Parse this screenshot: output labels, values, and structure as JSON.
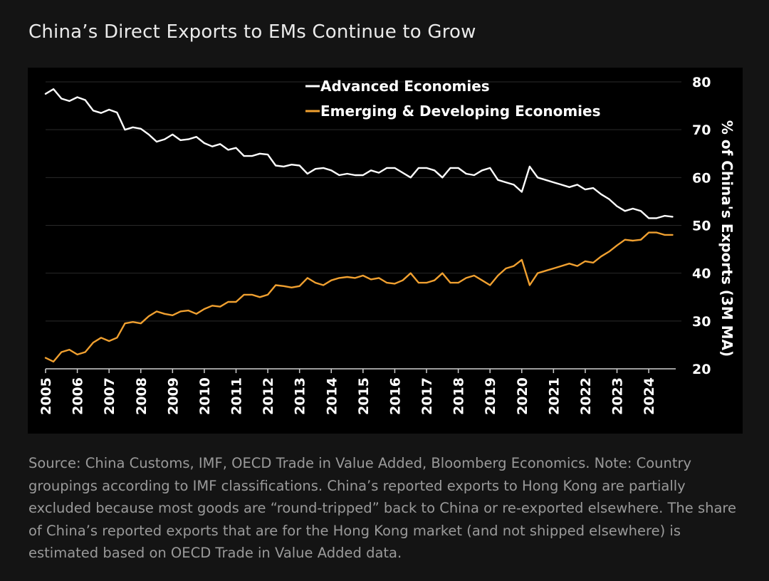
{
  "header": {
    "title": "China’s Direct Exports to EMs Continue to Grow"
  },
  "footer": {
    "source": "Source: China Customs, IMF, OECD Trade in Value Added, Bloomberg Economics. Note: Country groupings according to IMF classifications. China’s reported exports to Hong Kong are partially excluded because most goods are “round-tripped” back to China or re-exported elsewhere. The share of China’s reported exports that are for the Hong Kong market (and not shipped elsewhere) is estimated based on OECD Trade in Value Added data."
  },
  "colors": {
    "background": "#141414",
    "plot_background": "#000000",
    "advanced": "#ffffff",
    "emerging": "#f0a030"
  },
  "chart_data": {
    "type": "line",
    "title": "",
    "xlabel": "",
    "ylabel": "% of China's Exports (3M MA)",
    "xlim": [
      2005,
      2024.85
    ],
    "ylim": [
      20,
      80
    ],
    "x_ticks": [
      "2005",
      "2006",
      "2007",
      "2008",
      "2009",
      "2010",
      "2011",
      "2012",
      "2013",
      "2014",
      "2015",
      "2016",
      "2017",
      "2018",
      "2019",
      "2020",
      "2021",
      "2022",
      "2023",
      "2024"
    ],
    "y_ticks": [
      "20",
      "30",
      "40",
      "50",
      "60",
      "70",
      "80"
    ],
    "grid": "horizontal",
    "y_axis_side": "right",
    "legend_position": "top-center",
    "series": [
      {
        "name": "Advanced Economies",
        "color": "#ffffff",
        "x": [
          2005.0,
          2005.25,
          2005.5,
          2005.75,
          2006.0,
          2006.25,
          2006.5,
          2006.75,
          2007.0,
          2007.25,
          2007.5,
          2007.75,
          2008.0,
          2008.25,
          2008.5,
          2008.75,
          2009.0,
          2009.25,
          2009.5,
          2009.75,
          2010.0,
          2010.25,
          2010.5,
          2010.75,
          2011.0,
          2011.25,
          2011.5,
          2011.75,
          2012.0,
          2012.25,
          2012.5,
          2012.75,
          2013.0,
          2013.25,
          2013.5,
          2013.75,
          2014.0,
          2014.25,
          2014.5,
          2014.75,
          2015.0,
          2015.25,
          2015.5,
          2015.75,
          2016.0,
          2016.25,
          2016.5,
          2016.75,
          2017.0,
          2017.25,
          2017.5,
          2017.75,
          2018.0,
          2018.25,
          2018.5,
          2018.75,
          2019.0,
          2019.25,
          2019.5,
          2019.75,
          2020.0,
          2020.25,
          2020.5,
          2020.75,
          2021.0,
          2021.25,
          2021.5,
          2021.75,
          2022.0,
          2022.25,
          2022.5,
          2022.75,
          2023.0,
          2023.25,
          2023.5,
          2023.75,
          2024.0,
          2024.25,
          2024.5,
          2024.75
        ],
        "values": [
          77.5,
          78.5,
          76.5,
          76.0,
          76.8,
          76.2,
          74.0,
          73.5,
          74.2,
          73.6,
          70.0,
          70.5,
          70.2,
          69.0,
          67.5,
          68.0,
          69.0,
          67.8,
          68.0,
          68.5,
          67.2,
          66.5,
          67.0,
          65.8,
          66.2,
          64.5,
          64.5,
          65.0,
          64.8,
          62.5,
          62.3,
          62.7,
          62.5,
          60.8,
          61.8,
          62.0,
          61.5,
          60.5,
          60.8,
          60.5,
          60.5,
          61.5,
          61.0,
          62.0,
          62.0,
          61.0,
          60.0,
          62.0,
          62.0,
          61.5,
          60.0,
          62.0,
          62.0,
          60.8,
          60.5,
          61.5,
          62.0,
          59.5,
          59.0,
          58.5,
          57.0,
          62.3,
          60.0,
          59.5,
          59.0,
          58.5,
          58.0,
          58.5,
          57.5,
          57.8,
          56.5,
          55.5,
          54.0,
          53.0,
          53.5,
          53.0,
          51.5,
          51.5,
          52.0,
          51.8
        ]
      },
      {
        "name": "Emerging & Developing Economies",
        "color": "#f0a030",
        "x": [
          2005.0,
          2005.25,
          2005.5,
          2005.75,
          2006.0,
          2006.25,
          2006.5,
          2006.75,
          2007.0,
          2007.25,
          2007.5,
          2007.75,
          2008.0,
          2008.25,
          2008.5,
          2008.75,
          2009.0,
          2009.25,
          2009.5,
          2009.75,
          2010.0,
          2010.25,
          2010.5,
          2010.75,
          2011.0,
          2011.25,
          2011.5,
          2011.75,
          2012.0,
          2012.25,
          2012.5,
          2012.75,
          2013.0,
          2013.25,
          2013.5,
          2013.75,
          2014.0,
          2014.25,
          2014.5,
          2014.75,
          2015.0,
          2015.25,
          2015.5,
          2015.75,
          2016.0,
          2016.25,
          2016.5,
          2016.75,
          2017.0,
          2017.25,
          2017.5,
          2017.75,
          2018.0,
          2018.25,
          2018.5,
          2018.75,
          2019.0,
          2019.25,
          2019.5,
          2019.75,
          2020.0,
          2020.25,
          2020.5,
          2020.75,
          2021.0,
          2021.25,
          2021.5,
          2021.75,
          2022.0,
          2022.25,
          2022.5,
          2022.75,
          2023.0,
          2023.25,
          2023.5,
          2023.75,
          2024.0,
          2024.25,
          2024.5,
          2024.75
        ],
        "values": [
          22.3,
          21.5,
          23.5,
          24.0,
          23.0,
          23.5,
          25.5,
          26.5,
          25.8,
          26.5,
          29.5,
          29.8,
          29.5,
          31.0,
          32.0,
          31.5,
          31.2,
          32.0,
          32.2,
          31.5,
          32.5,
          33.2,
          33.0,
          34.0,
          34.0,
          35.5,
          35.5,
          35.0,
          35.5,
          37.5,
          37.3,
          37.0,
          37.3,
          39.0,
          38.0,
          37.5,
          38.5,
          39.0,
          39.2,
          39.0,
          39.5,
          38.7,
          39.0,
          38.0,
          37.8,
          38.5,
          40.0,
          38.0,
          38.0,
          38.5,
          40.0,
          38.0,
          38.0,
          39.0,
          39.5,
          38.5,
          37.5,
          39.5,
          41.0,
          41.5,
          42.8,
          37.5,
          40.0,
          40.5,
          41.0,
          41.5,
          42.0,
          41.5,
          42.5,
          42.2,
          43.5,
          44.5,
          45.8,
          47.0,
          46.8,
          47.0,
          48.5,
          48.5,
          48.0,
          48.0
        ]
      }
    ]
  }
}
